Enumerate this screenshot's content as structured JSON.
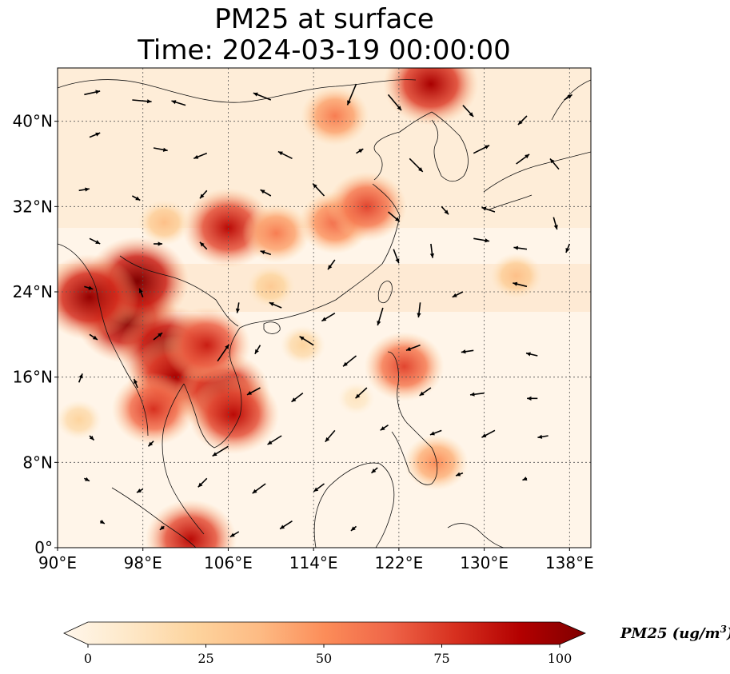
{
  "title": {
    "line1": "PM25 at surface",
    "line2": "Time: 2024-03-19 00:00:00"
  },
  "map": {
    "lon_range": [
      90,
      140
    ],
    "lat_range": [
      0,
      45
    ],
    "lon_ticks": [
      {
        "value": 90,
        "label": "90°E"
      },
      {
        "value": 98,
        "label": "98°E"
      },
      {
        "value": 106,
        "label": "106°E"
      },
      {
        "value": 114,
        "label": "114°E"
      },
      {
        "value": 122,
        "label": "122°E"
      },
      {
        "value": 130,
        "label": "130°E"
      },
      {
        "value": 138,
        "label": "138°E"
      }
    ],
    "lat_ticks": [
      {
        "value": 0,
        "label": "0°"
      },
      {
        "value": 8,
        "label": "8°N"
      },
      {
        "value": 16,
        "label": "16°N"
      },
      {
        "value": 24,
        "label": "24°N"
      },
      {
        "value": 32,
        "label": "32°N"
      },
      {
        "value": 40,
        "label": "40°N"
      }
    ],
    "gridlines": true,
    "colormap": "OrRd",
    "hotspots": [
      {
        "lon": 96.5,
        "lat": 21.5,
        "pm25": 100
      },
      {
        "lon": 100.5,
        "lat": 18.5,
        "pm25": 100
      },
      {
        "lon": 97.5,
        "lat": 25.0,
        "pm25": 100
      },
      {
        "lon": 93.0,
        "lat": 23.5,
        "pm25": 95
      },
      {
        "lon": 101.0,
        "lat": 16.0,
        "pm25": 90
      },
      {
        "lon": 105.5,
        "lat": 14.5,
        "pm25": 90
      },
      {
        "lon": 106.5,
        "lat": 12.5,
        "pm25": 85
      },
      {
        "lon": 99.0,
        "lat": 13.0,
        "pm25": 75
      },
      {
        "lon": 104.0,
        "lat": 19.0,
        "pm25": 80
      },
      {
        "lon": 106.0,
        "lat": 30.0,
        "pm25": 85
      },
      {
        "lon": 110.5,
        "lat": 29.5,
        "pm25": 55
      },
      {
        "lon": 116.0,
        "lat": 30.5,
        "pm25": 60
      },
      {
        "lon": 119.0,
        "lat": 32.0,
        "pm25": 70
      },
      {
        "lon": 116.0,
        "lat": 40.5,
        "pm25": 55
      },
      {
        "lon": 125.0,
        "lat": 43.5,
        "pm25": 90
      },
      {
        "lon": 122.5,
        "lat": 17.0,
        "pm25": 70
      },
      {
        "lon": 125.5,
        "lat": 8.0,
        "pm25": 50
      },
      {
        "lon": 102.5,
        "lat": 0.8,
        "pm25": 85
      },
      {
        "lon": 92.0,
        "lat": 12.0,
        "pm25": 25
      },
      {
        "lon": 100.0,
        "lat": 30.5,
        "pm25": 35
      },
      {
        "lon": 133.0,
        "lat": 25.5,
        "pm25": 35
      },
      {
        "lon": 110.0,
        "lat": 24.5,
        "pm25": 30
      },
      {
        "lon": 113.0,
        "lat": 19.0,
        "pm25": 25
      },
      {
        "lon": 118.0,
        "lat": 14.0,
        "pm25": 15
      }
    ],
    "wind_vectors": [
      [
        92.5,
        42.5,
        1.8,
        0.4
      ],
      [
        97,
        42,
        2.2,
        -0.2
      ],
      [
        102,
        41.5,
        -1.6,
        0.5
      ],
      [
        110,
        42,
        -2.0,
        0.8
      ],
      [
        118,
        43.5,
        -1.0,
        -2.4
      ],
      [
        121,
        42.5,
        1.5,
        -1.8
      ],
      [
        128,
        41.5,
        1.2,
        -1.3
      ],
      [
        134,
        40.5,
        -1.0,
        -1.0
      ],
      [
        137.5,
        42,
        0.9,
        0.6
      ],
      [
        93,
        38.5,
        1.2,
        0.5
      ],
      [
        99,
        37.5,
        1.6,
        -0.3
      ],
      [
        104,
        37,
        -1.5,
        -0.6
      ],
      [
        112,
        36.5,
        -1.6,
        0.8
      ],
      [
        118,
        37,
        0.8,
        0.5
      ],
      [
        123,
        36.5,
        1.5,
        -1.5
      ],
      [
        129,
        37,
        1.8,
        0.9
      ],
      [
        133,
        36,
        1.5,
        1.1
      ],
      [
        137,
        35.5,
        -1.0,
        1.2
      ],
      [
        92,
        33.5,
        1.2,
        0.2
      ],
      [
        97,
        33,
        0.9,
        -0.5
      ],
      [
        104,
        33.5,
        -0.8,
        -0.9
      ],
      [
        110,
        33,
        -1.2,
        0.7
      ],
      [
        115,
        33,
        -1.3,
        1.4
      ],
      [
        121,
        31.5,
        1.3,
        -1.1
      ],
      [
        126,
        32,
        0.8,
        -0.9
      ],
      [
        131,
        31.5,
        -1.5,
        0.5
      ],
      [
        136.5,
        31,
        0.4,
        -1.4
      ],
      [
        93,
        29,
        1.2,
        -0.6
      ],
      [
        99,
        28.5,
        1.0,
        0.0
      ],
      [
        104,
        28,
        -0.8,
        0.8
      ],
      [
        110,
        27.5,
        -1.2,
        0.4
      ],
      [
        116,
        27,
        -0.8,
        -1.1
      ],
      [
        121.5,
        28,
        0.6,
        -1.6
      ],
      [
        125,
        28.5,
        0.2,
        -1.6
      ],
      [
        129,
        29,
        1.8,
        -0.3
      ],
      [
        134,
        28,
        -1.5,
        0.2
      ],
      [
        138,
        28.5,
        -0.4,
        -1.0
      ],
      [
        92.5,
        24.5,
        1.0,
        -0.3
      ],
      [
        98,
        23.5,
        -0.4,
        1.0
      ],
      [
        107,
        23,
        -0.2,
        -1.2
      ],
      [
        111,
        22.5,
        -1.4,
        0.6
      ],
      [
        116,
        22,
        -1.5,
        -0.9
      ],
      [
        120.5,
        22.5,
        -0.6,
        -2.0
      ],
      [
        124,
        23,
        -0.2,
        -1.7
      ],
      [
        128,
        24,
        -1.2,
        -0.6
      ],
      [
        134,
        24.5,
        -1.6,
        0.4
      ],
      [
        93,
        20,
        0.9,
        -0.6
      ],
      [
        99,
        19.5,
        1.0,
        0.8
      ],
      [
        105,
        17.5,
        1.3,
        1.9
      ],
      [
        109,
        19,
        -0.6,
        -1.0
      ],
      [
        114,
        19,
        -1.6,
        1.0
      ],
      [
        118,
        18,
        -1.5,
        -1.2
      ],
      [
        124,
        19,
        -1.6,
        -0.6
      ],
      [
        129,
        18.5,
        -1.4,
        -0.2
      ],
      [
        135,
        18,
        -1.3,
        0.3
      ],
      [
        92,
        15.5,
        0.4,
        1.0
      ],
      [
        97.5,
        15,
        -0.4,
        1.0
      ],
      [
        109,
        15,
        -1.5,
        -0.8
      ],
      [
        113,
        14.5,
        -1.3,
        -1.0
      ],
      [
        119,
        15,
        -1.3,
        -1.2
      ],
      [
        125,
        15,
        -1.3,
        -0.9
      ],
      [
        130,
        14.5,
        -1.6,
        -0.2
      ],
      [
        135,
        14,
        -1.2,
        0.0
      ],
      [
        93,
        10.5,
        0.5,
        -0.5
      ],
      [
        99,
        10,
        -0.6,
        -0.6
      ],
      [
        106,
        9.5,
        -1.8,
        -1.1
      ],
      [
        111,
        10.5,
        -1.6,
        -1.0
      ],
      [
        116,
        11,
        -1.1,
        -1.3
      ],
      [
        121,
        11.5,
        -0.9,
        -0.6
      ],
      [
        126,
        11,
        -1.3,
        -0.5
      ],
      [
        131,
        11,
        -1.5,
        -0.8
      ],
      [
        136,
        10.5,
        -1.2,
        -0.2
      ],
      [
        92.5,
        6.5,
        0.6,
        -0.3
      ],
      [
        98,
        5.5,
        -0.7,
        -0.4
      ],
      [
        104,
        6.5,
        -1.0,
        -1.0
      ],
      [
        109.5,
        6,
        -1.5,
        -1.1
      ],
      [
        115,
        6,
        -1.2,
        -0.9
      ],
      [
        120,
        7.5,
        -0.7,
        -0.6
      ],
      [
        128,
        7,
        -0.8,
        -0.3
      ],
      [
        134,
        6.5,
        -0.5,
        -0.2
      ],
      [
        94,
        2.5,
        0.5,
        -0.3
      ],
      [
        100,
        2,
        -0.5,
        -0.4
      ],
      [
        107,
        1.5,
        -1.0,
        -0.6
      ],
      [
        112,
        2.5,
        -1.4,
        -0.9
      ],
      [
        118,
        2,
        -0.6,
        -0.5
      ]
    ]
  },
  "colorbar": {
    "ticks": [
      {
        "value": 0,
        "label": "0"
      },
      {
        "value": 25,
        "label": "25"
      },
      {
        "value": 50,
        "label": "50"
      },
      {
        "value": 75,
        "label": "75"
      },
      {
        "value": 100,
        "label": "100"
      }
    ],
    "range": [
      0,
      100
    ],
    "title": "PM25 (ug/m",
    "title_sup": "3",
    "title_close": ")",
    "colors": [
      "#fff7ec",
      "#fee8c8",
      "#fdd49e",
      "#fdbb84",
      "#fc8d59",
      "#ef6548",
      "#d7301f",
      "#b30000",
      "#7f0000"
    ]
  }
}
